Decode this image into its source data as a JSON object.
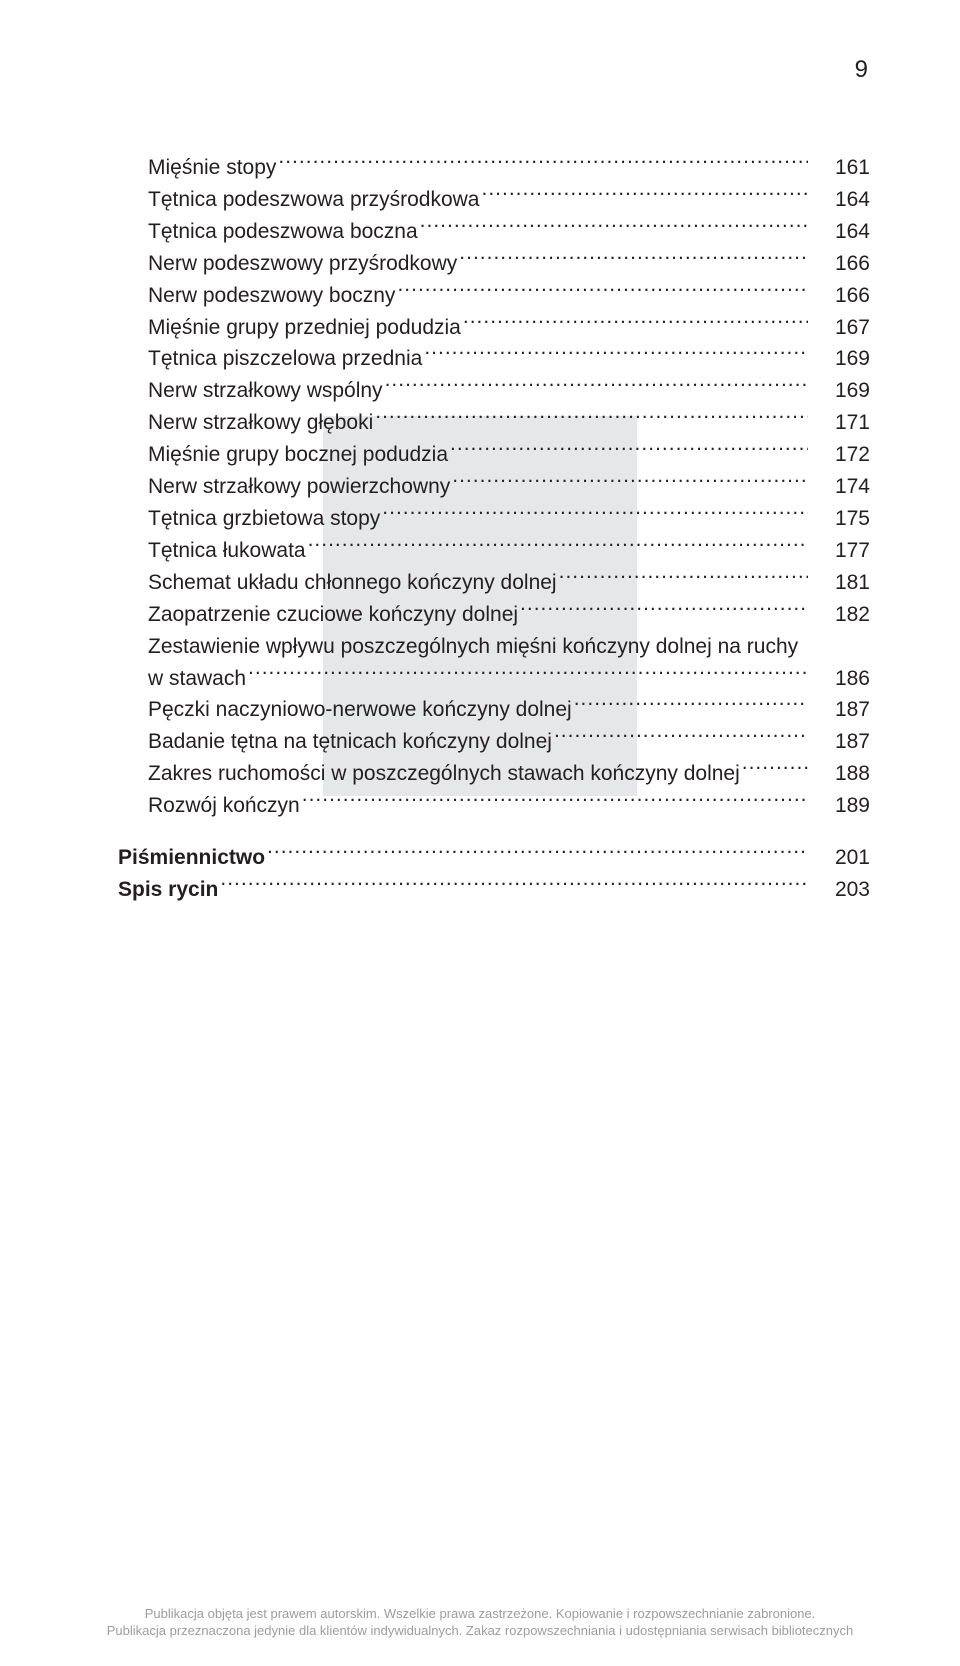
{
  "pageNumber": "9",
  "toc": {
    "entries": [
      {
        "label": "Mięśnie stopy",
        "page": "161",
        "indent": true
      },
      {
        "label": "Tętnica podeszwowa przyśrodkowa",
        "page": "164",
        "indent": true
      },
      {
        "label": "Tętnica podeszwowa boczna",
        "page": "164",
        "indent": true
      },
      {
        "label": "Nerw podeszwowy przyśrodkowy",
        "page": "166",
        "indent": true
      },
      {
        "label": "Nerw podeszwowy boczny",
        "page": "166",
        "indent": true
      },
      {
        "label": "Mięśnie grupy przedniej podudzia",
        "page": "167",
        "indent": true
      },
      {
        "label": "Tętnica piszczelowa przednia",
        "page": "169",
        "indent": true
      },
      {
        "label": "Nerw strzałkowy wspólny",
        "page": "169",
        "indent": true
      },
      {
        "label": "Nerw strzałkowy głęboki",
        "page": "171",
        "indent": true
      },
      {
        "label": "Mięśnie grupy bocznej podudzia",
        "page": "172",
        "indent": true
      },
      {
        "label": "Nerw strzałkowy powierzchowny",
        "page": "174",
        "indent": true
      },
      {
        "label": "Tętnica grzbietowa stopy",
        "page": "175",
        "indent": true
      },
      {
        "label": "Tętnica łukowata",
        "page": "177",
        "indent": true
      },
      {
        "label": "Schemat układu chłonnego kończyny dolnej",
        "page": "181",
        "indent": true
      },
      {
        "label": "Zaopatrzenie czuciowe kończyny dolnej",
        "page": "182",
        "indent": true
      },
      {
        "label_line1": "Zestawienie wpływu poszczególnych mięśni kończyny dolnej na ruchy",
        "label_line2": "w stawach",
        "page": "186",
        "indent": true,
        "multiline": true
      },
      {
        "label": "Pęczki naczyniowo-nerwowe kończyny dolnej",
        "page": "187",
        "indent": true
      },
      {
        "label": "Badanie tętna na tętnicach kończyny dolnej",
        "page": "187",
        "indent": true
      },
      {
        "label": "Zakres ruchomości w poszczególnych stawach kończyny dolnej",
        "page": "188",
        "indent": true
      },
      {
        "label": "Rozwój kończyn",
        "page": "189",
        "indent": true
      },
      {
        "label": "Piśmiennictwo",
        "page": "201",
        "indent": false,
        "bold": true,
        "gapBefore": true
      },
      {
        "label": "Spis rycin",
        "page": "203",
        "indent": false,
        "bold": true
      }
    ]
  },
  "footer": {
    "line1": "Publikacja objęta jest prawem autorskim. Wszelkie prawa zastrzeżone. Kopiowanie i rozpowszechnianie zabronione.",
    "line2": "Publikacja przeznaczona jedynie dla klientów indywidualnych. Zakaz rozpowszechniania i udostępniania serwisach bibliotecznych"
  },
  "colors": {
    "text": "#231f20",
    "watermark": "#e6e7e9",
    "footer": "#9d9d9c",
    "background": "#ffffff"
  }
}
